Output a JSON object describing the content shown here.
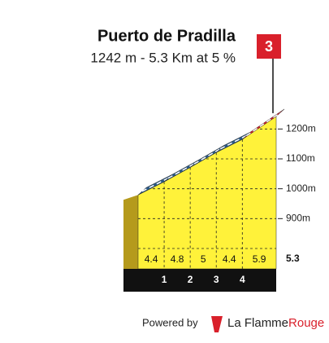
{
  "chart_data": {
    "type": "climb-profile",
    "title": "Puerto de Pradilla",
    "subtitle": "1242 m - 5.3 Km at 5 %",
    "category": "3",
    "summit": 1242,
    "distances": [
      1,
      2,
      3,
      4,
      5.3
    ],
    "gradients": [
      4.4,
      4.8,
      5.0,
      4.4,
      5.9
    ],
    "road_colors": [
      "#2c5a86",
      "#2c5a86",
      "#2c5a86",
      "#2c5a86",
      "#d9202b"
    ],
    "face_color": "#fff23a",
    "ylim": [
      800,
      1250
    ],
    "yticks": [
      {
        "value": 900,
        "label": "900m"
      },
      {
        "value": 1000,
        "label": "1000m"
      },
      {
        "value": 1100,
        "label": "1100m"
      },
      {
        "value": 1200,
        "label": "1200m"
      }
    ],
    "grid": true,
    "footer": "Powered by",
    "brand": [
      "La Flamme",
      "Rouge"
    ]
  }
}
